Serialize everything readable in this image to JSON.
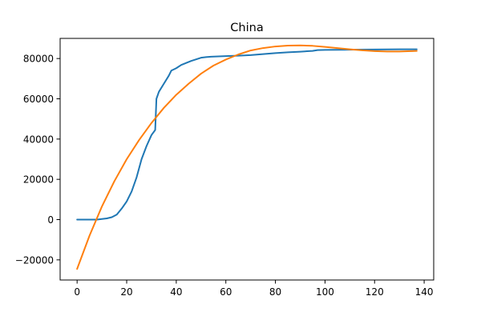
{
  "chart_data": {
    "type": "line",
    "title": "China",
    "xlabel": "",
    "ylabel": "",
    "xlim": [
      -6.85,
      143.85
    ],
    "ylim": [
      -30000,
      90000
    ],
    "x_ticks": [
      0,
      20,
      40,
      60,
      80,
      100,
      120,
      140
    ],
    "y_ticks": [
      -20000,
      0,
      20000,
      40000,
      60000,
      80000
    ],
    "grid": false,
    "legend": "none",
    "series": [
      {
        "color": "#1f77b4",
        "points": [
          [
            0,
            0
          ],
          [
            8,
            0
          ],
          [
            10,
            300
          ],
          [
            12,
            600
          ],
          [
            14,
            1200
          ],
          [
            16,
            2500
          ],
          [
            18,
            5500
          ],
          [
            20,
            9000
          ],
          [
            22,
            14000
          ],
          [
            24,
            21000
          ],
          [
            26,
            30000
          ],
          [
            28,
            36500
          ],
          [
            30,
            42000
          ],
          [
            31.5,
            44500
          ],
          [
            32,
            60000
          ],
          [
            33,
            63500
          ],
          [
            35,
            67500
          ],
          [
            37,
            71500
          ],
          [
            38,
            74000
          ],
          [
            40,
            75200
          ],
          [
            42,
            76800
          ],
          [
            44,
            77800
          ],
          [
            46,
            78800
          ],
          [
            48,
            79600
          ],
          [
            50,
            80400
          ],
          [
            52,
            80700
          ],
          [
            54,
            80900
          ],
          [
            56,
            81000
          ],
          [
            58,
            81100
          ],
          [
            60,
            81200
          ],
          [
            62,
            81300
          ],
          [
            65,
            81400
          ],
          [
            70,
            81700
          ],
          [
            75,
            82200
          ],
          [
            80,
            82700
          ],
          [
            85,
            83100
          ],
          [
            90,
            83400
          ],
          [
            95,
            83800
          ],
          [
            97,
            84200
          ],
          [
            100,
            84300
          ],
          [
            110,
            84400
          ],
          [
            120,
            84500
          ],
          [
            130,
            84600
          ],
          [
            137,
            84600
          ]
        ]
      },
      {
        "color": "#ff7f0e",
        "points": [
          [
            0,
            -24500
          ],
          [
            5,
            -8000
          ],
          [
            10,
            6500
          ],
          [
            15,
            19000
          ],
          [
            20,
            30000
          ],
          [
            25,
            39500
          ],
          [
            30,
            48000
          ],
          [
            35,
            55500
          ],
          [
            40,
            62000
          ],
          [
            45,
            67500
          ],
          [
            50,
            72500
          ],
          [
            55,
            76500
          ],
          [
            60,
            79500
          ],
          [
            65,
            82000
          ],
          [
            70,
            84000
          ],
          [
            75,
            85200
          ],
          [
            80,
            86000
          ],
          [
            85,
            86400
          ],
          [
            90,
            86500
          ],
          [
            95,
            86300
          ],
          [
            100,
            85800
          ],
          [
            105,
            85200
          ],
          [
            110,
            84600
          ],
          [
            115,
            84100
          ],
          [
            120,
            83700
          ],
          [
            125,
            83500
          ],
          [
            130,
            83500
          ],
          [
            135,
            83700
          ],
          [
            137,
            83800
          ]
        ]
      }
    ]
  }
}
